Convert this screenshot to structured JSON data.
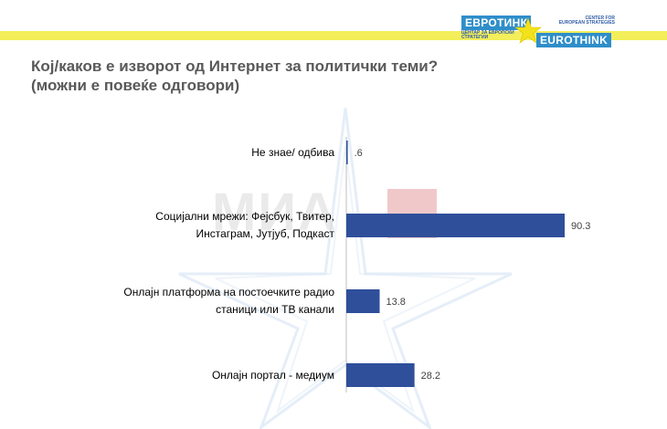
{
  "header": {
    "logo": {
      "left_badge": "ЕВРОТИНК",
      "left_sub": "ЦЕНТАР ЗА ЕВРОПСКИ СТРАТЕГИИ",
      "right_badge": "EUROTHINK",
      "right_sub": "CENTER FOR EUROPEAN STRATEGIES"
    },
    "colors": {
      "band": "#f3ee5a",
      "brand_blue": "#2f8ec9"
    }
  },
  "watermark": {
    "text": "МИА"
  },
  "chart_data": {
    "type": "bar",
    "orientation": "horizontal",
    "title": "Кој/каков е изворот од Интернет за политички теми?",
    "subtitle": "(можни е повеќе одговори)",
    "categories": [
      "Не знае/ одбива",
      "Социјални мрежи: Фејсбук, Твитер, Инстаграм, Јутјуб, Подкаст",
      "Онлајн платформа на постоечките радио станици или ТВ канали",
      "Онлајн портал - медиум"
    ],
    "category_lines": [
      [
        "Не знае/ одбива"
      ],
      [
        "Социјални мрежи: Фејсбук, Твитер,",
        "Инстаграм, Јутјуб, Подкаст"
      ],
      [
        "Онлајн платформа на постоечките радио",
        "станици или ТВ канали"
      ],
      [
        "Онлајн портал - медиум"
      ]
    ],
    "values": [
      0.6,
      90.3,
      13.8,
      28.2
    ],
    "data_labels": [
      ".6",
      "90.3",
      "13.8",
      "28.2"
    ],
    "xlim": [
      0,
      100
    ],
    "bar_color": "#2f4f9b",
    "grid": false,
    "legend": "none"
  }
}
